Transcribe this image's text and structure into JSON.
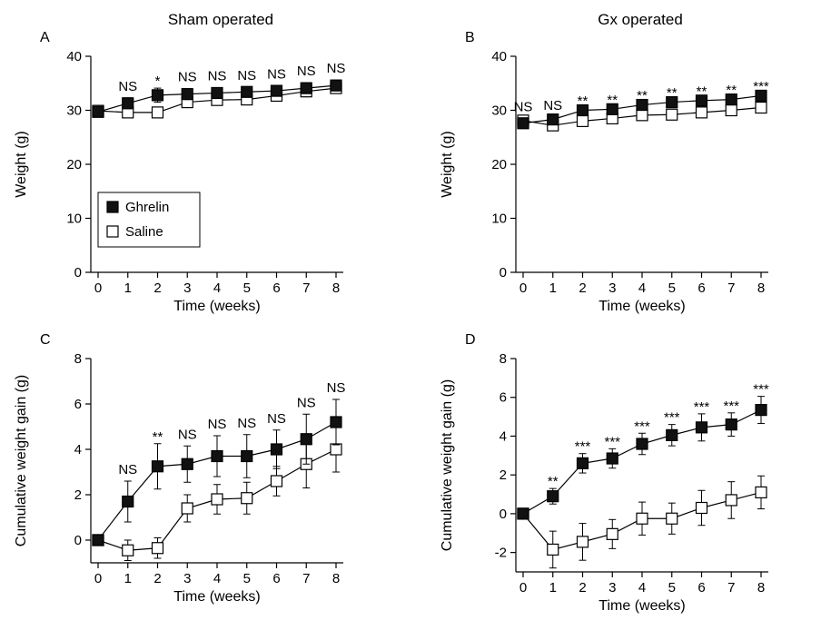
{
  "column_titles": [
    "Sham operated",
    "Gx operated"
  ],
  "legend": {
    "ghrelin": "Ghrelin",
    "saline": "Saline"
  },
  "colors": {
    "ghrelin": "#111111",
    "saline": "#ffffff",
    "line": "#000000"
  },
  "chart_data": [
    {
      "panel": "A",
      "type": "line",
      "xlabel": "Time (weeks)",
      "ylabel": "Weight (g)",
      "x": [
        0,
        1,
        2,
        3,
        4,
        5,
        6,
        7,
        8
      ],
      "xlim": [
        0,
        8
      ],
      "ylim": [
        0,
        40
      ],
      "yticks": [
        0,
        10,
        20,
        30,
        40
      ],
      "legend": "left-middle",
      "series": [
        {
          "name": "Ghrelin",
          "values": [
            29.7,
            31.3,
            32.8,
            33.0,
            33.2,
            33.4,
            33.6,
            34.1,
            34.6
          ],
          "err": [
            0.5,
            1.0,
            1.3,
            1.0,
            1.0,
            0.9,
            0.9,
            1.0,
            1.0
          ]
        },
        {
          "name": "Saline",
          "values": [
            29.9,
            29.6,
            29.6,
            31.5,
            31.9,
            32.0,
            32.7,
            33.5,
            34.1
          ],
          "err": [
            0.5,
            0.7,
            0.6,
            0.8,
            0.8,
            0.8,
            0.8,
            1.0,
            0.9
          ]
        }
      ],
      "annotations": [
        "",
        "NS",
        "*",
        "NS",
        "NS",
        "NS",
        "NS",
        "NS",
        "NS"
      ]
    },
    {
      "panel": "B",
      "type": "line",
      "xlabel": "Time (weeks)",
      "ylabel": "Weight (g)",
      "x": [
        0,
        1,
        2,
        3,
        4,
        5,
        6,
        7,
        8
      ],
      "xlim": [
        0,
        8
      ],
      "ylim": [
        0,
        40
      ],
      "yticks": [
        0,
        10,
        20,
        30,
        40
      ],
      "series": [
        {
          "name": "Ghrelin",
          "values": [
            27.6,
            28.3,
            30.0,
            30.2,
            31.0,
            31.5,
            31.8,
            32.0,
            32.7
          ],
          "err": [
            0.4,
            0.4,
            0.4,
            0.4,
            0.4,
            0.4,
            0.4,
            0.4,
            0.4
          ]
        },
        {
          "name": "Saline",
          "values": [
            28.1,
            27.2,
            28.0,
            28.5,
            29.1,
            29.2,
            29.6,
            30.0,
            30.5
          ],
          "err": [
            0.4,
            0.4,
            0.4,
            0.4,
            0.4,
            0.4,
            0.4,
            0.4,
            0.4
          ]
        }
      ],
      "annotations": [
        "NS",
        "NS",
        "**",
        "**",
        "**",
        "**",
        "**",
        "**",
        "***"
      ]
    },
    {
      "panel": "C",
      "type": "line",
      "xlabel": "Time (weeks)",
      "ylabel": "Cumulative weight gain (g)",
      "x": [
        0,
        1,
        2,
        3,
        4,
        5,
        6,
        7,
        8
      ],
      "xlim": [
        0,
        8
      ],
      "ylim": [
        -1,
        8
      ],
      "yticks": [
        0,
        2,
        4,
        6,
        8
      ],
      "series": [
        {
          "name": "Ghrelin",
          "values": [
            0,
            1.7,
            3.25,
            3.35,
            3.7,
            3.7,
            4.0,
            4.45,
            5.2
          ],
          "err": [
            0,
            0.9,
            1.0,
            0.8,
            0.9,
            0.95,
            0.85,
            1.1,
            1.0
          ]
        },
        {
          "name": "Saline",
          "values": [
            0,
            -0.45,
            -0.35,
            1.4,
            1.8,
            1.85,
            2.6,
            3.35,
            4.0
          ],
          "err": [
            0,
            0.45,
            0.45,
            0.6,
            0.65,
            0.7,
            0.65,
            1.05,
            1.0
          ]
        }
      ],
      "annotations": [
        "",
        "NS",
        "**",
        "NS",
        "NS",
        "NS",
        "NS",
        "NS",
        "NS"
      ]
    },
    {
      "panel": "D",
      "type": "line",
      "xlabel": "Time (weeks)",
      "ylabel": "Cumulative weight gain (g)",
      "x": [
        0,
        1,
        2,
        3,
        4,
        5,
        6,
        7,
        8
      ],
      "xlim": [
        0,
        8
      ],
      "ylim": [
        -3,
        8
      ],
      "yticks": [
        -2,
        0,
        2,
        4,
        6,
        8
      ],
      "series": [
        {
          "name": "Ghrelin",
          "values": [
            0,
            0.9,
            2.6,
            2.85,
            3.6,
            4.05,
            4.45,
            4.6,
            5.35
          ],
          "err": [
            0,
            0.4,
            0.5,
            0.5,
            0.55,
            0.55,
            0.7,
            0.6,
            0.7
          ]
        },
        {
          "name": "Saline",
          "values": [
            0,
            -1.85,
            -1.45,
            -1.05,
            -0.25,
            -0.25,
            0.3,
            0.7,
            1.1
          ],
          "err": [
            0,
            0.95,
            0.95,
            0.75,
            0.85,
            0.8,
            0.9,
            0.95,
            0.85
          ]
        }
      ],
      "annotations": [
        "",
        "**",
        "***",
        "***",
        "***",
        "***",
        "***",
        "***",
        "***"
      ]
    }
  ]
}
